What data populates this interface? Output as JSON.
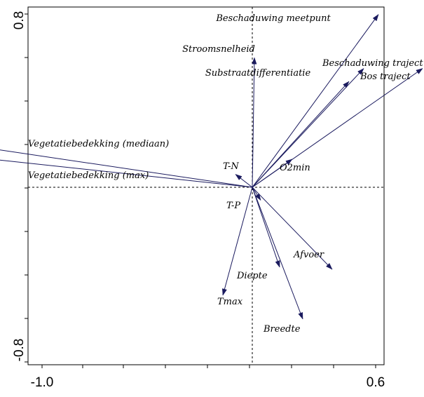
{
  "chart_data": {
    "type": "biplot",
    "title": "",
    "xlabel": "",
    "ylabel": "",
    "xlim": [
      -1.0,
      0.6
    ],
    "ylim": [
      -0.8,
      0.8
    ],
    "x_tick_labels": [
      "-1.0",
      "0.6"
    ],
    "y_tick_labels": [
      "0.8",
      "-0.8"
    ],
    "grid": false,
    "zero_lines": true,
    "arrow_color": "#1a1a5e",
    "vectors": [
      {
        "name": "Beschaduwing meetpunt",
        "x": 0.6,
        "y": 0.8
      },
      {
        "name": "Stroomsnelheid",
        "x": 0.01,
        "y": 0.6
      },
      {
        "name": "Substraatdifferentiatie",
        "x": 0.46,
        "y": 0.49
      },
      {
        "name": "Beschaduwing traject",
        "x": 0.53,
        "y": 0.55
      },
      {
        "name": "Bos traject",
        "x": 0.81,
        "y": 0.55
      },
      {
        "name": "Vegetatiebedekking (mediaan)",
        "x": -1.25,
        "y": 0.18
      },
      {
        "name": "Vegetatiebedekking (max)",
        "x": -1.43,
        "y": 0.15
      },
      {
        "name": "T-N",
        "x": -0.08,
        "y": 0.06
      },
      {
        "name": "O2min",
        "x": 0.19,
        "y": 0.13
      },
      {
        "name": "T-P",
        "x": 0.04,
        "y": -0.06
      },
      {
        "name": "Afvoer",
        "x": 0.38,
        "y": -0.38
      },
      {
        "name": "Diepte",
        "x": 0.13,
        "y": -0.37
      },
      {
        "name": "Tmax",
        "x": -0.14,
        "y": -0.5
      },
      {
        "name": "Breedte",
        "x": 0.24,
        "y": -0.61
      }
    ]
  }
}
